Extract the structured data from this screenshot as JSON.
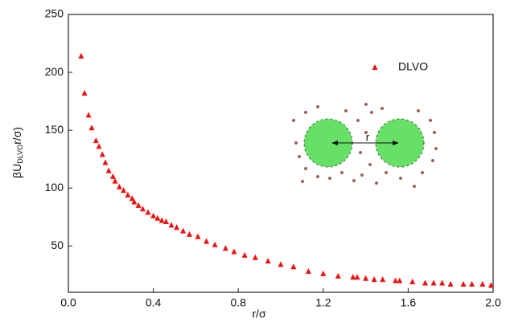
{
  "chart_data": {
    "type": "scatter",
    "x_label": "r/σ",
    "y_label": {
      "main": "βU",
      "subscript": "DLVO",
      "tail": "r/σ)"
    },
    "inset_label": "r",
    "series": [
      {
        "name": "DLVO",
        "color": "#ee1111",
        "x": [
          0.06,
          0.076,
          0.095,
          0.11,
          0.13,
          0.144,
          0.16,
          0.174,
          0.19,
          0.21,
          0.22,
          0.24,
          0.26,
          0.28,
          0.3,
          0.31,
          0.33,
          0.35,
          0.375,
          0.4,
          0.42,
          0.44,
          0.46,
          0.485,
          0.51,
          0.54,
          0.57,
          0.61,
          0.65,
          0.69,
          0.74,
          0.78,
          0.83,
          0.88,
          0.94,
          1.0,
          1.06,
          1.13,
          1.2,
          1.27,
          1.34,
          1.36,
          1.4,
          1.44,
          1.48,
          1.54,
          1.56,
          1.62,
          1.68,
          1.72,
          1.76,
          1.8,
          1.86,
          1.9,
          1.95,
          1.99
        ],
        "values": [
          214,
          182,
          163,
          152,
          141,
          136,
          129,
          122,
          115,
          110,
          106,
          101,
          98,
          94,
          91,
          88,
          85,
          82,
          79,
          76,
          74,
          72,
          71,
          68,
          66,
          63,
          60,
          58,
          54,
          51,
          48,
          45,
          42,
          40,
          37,
          34,
          32,
          28,
          26,
          24,
          23,
          23,
          22,
          21,
          21,
          20,
          20,
          19,
          18,
          18,
          18,
          17,
          17,
          17,
          17,
          16
        ]
      }
    ],
    "xlim": [
      0,
      2.0
    ],
    "xticks": [
      {
        "value": 0,
        "label": "0.0"
      },
      {
        "value": 0.4,
        "label": "0.4"
      },
      {
        "value": 0.8,
        "label": "0.8"
      },
      {
        "value": 1.2,
        "label": "1.2"
      },
      {
        "value": 1.6,
        "label": "1.6"
      },
      {
        "value": 2.0,
        "label": "2.0"
      }
    ],
    "ylim": [
      10,
      250
    ],
    "yticks": [
      50,
      100,
      150,
      200,
      250
    ],
    "legend": "upper right"
  }
}
